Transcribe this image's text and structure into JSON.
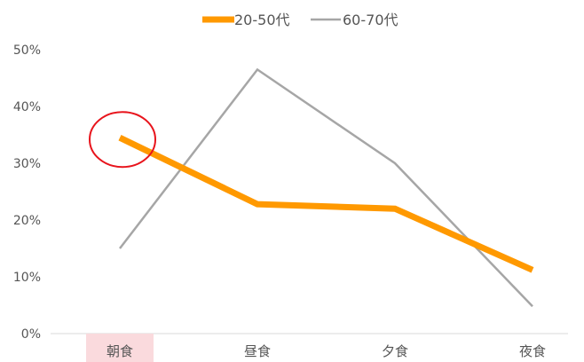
{
  "chart_data": {
    "type": "line",
    "categories": [
      "朝食",
      "昼食",
      "夕食",
      "夜食"
    ],
    "series": [
      {
        "name": "20-50代",
        "values": [
          34.5,
          22.8,
          22.0,
          11.2
        ],
        "color": "#FF9900"
      },
      {
        "name": "60-70代",
        "values": [
          15.0,
          46.5,
          30.0,
          4.8
        ],
        "color": "#A6A6A6"
      }
    ],
    "yticks": [
      "0%",
      "10%",
      "20%",
      "30%",
      "40%",
      "50%"
    ],
    "ylim": [
      0,
      50
    ],
    "grid": false,
    "legend_position": "top",
    "highlight": {
      "category": "朝食",
      "series": "20-50代",
      "band_color": "#FADADD",
      "circle_color": "#E8141C"
    }
  }
}
